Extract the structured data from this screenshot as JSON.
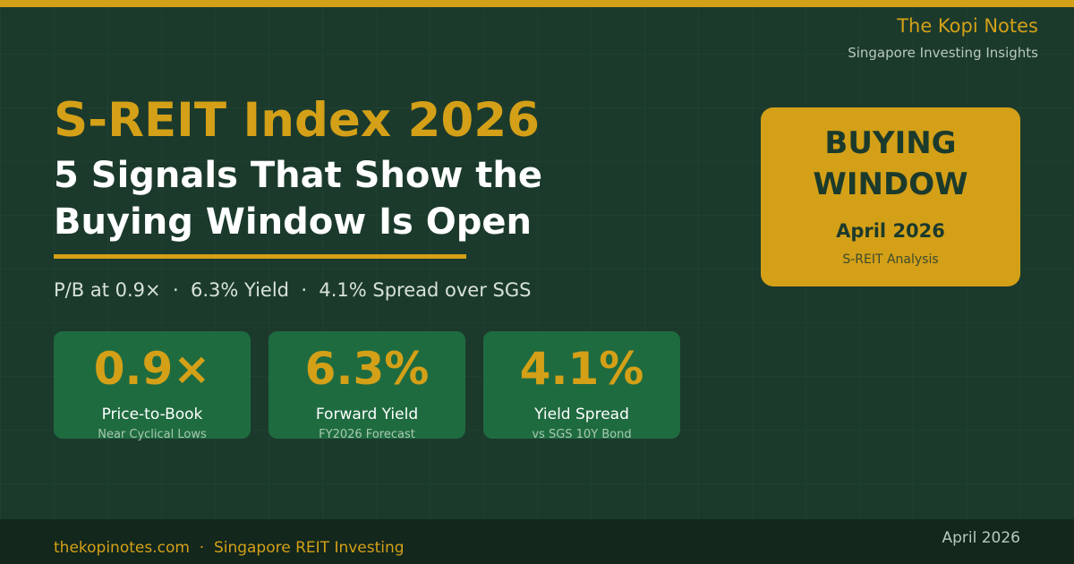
{
  "brand": {
    "name": "The Kopi Notes",
    "tagline": "Singapore Investing Insights"
  },
  "headline": {
    "title": "S-REIT Index 2026",
    "subtitle_lines": [
      "5 Signals That Show the",
      "Buying Window Is Open"
    ]
  },
  "summary": "P/B at 0.9×  ·  6.3% Yield  ·  4.1% Spread over SGS",
  "metrics": [
    {
      "value": "0.9×",
      "label": "Price-to-Book",
      "note": "Near Cyclical Lows"
    },
    {
      "value": "6.3%",
      "label": "Forward Yield",
      "note": "FY2026 Forecast"
    },
    {
      "value": "4.1%",
      "label": "Yield Spread",
      "note": "vs SGS 10Y Bond"
    }
  ],
  "badge": {
    "lines": [
      "BUYING",
      "WINDOW"
    ],
    "date": "April 2026",
    "note": "S-REIT Analysis"
  },
  "footer": {
    "left": "thekopinotes.com  ·  Singapore REIT Investing",
    "right": "April 2026"
  }
}
